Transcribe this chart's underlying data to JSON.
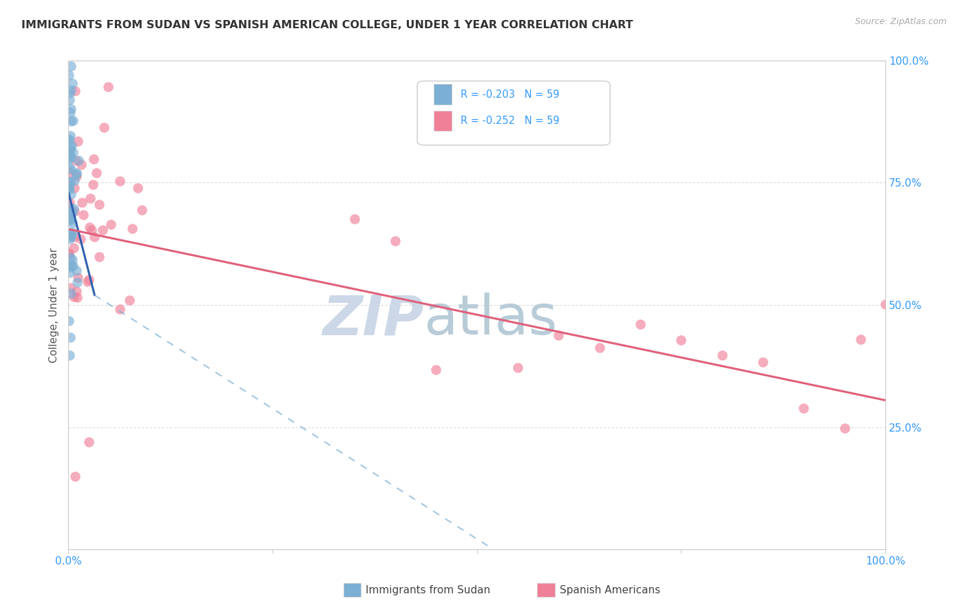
{
  "title": "IMMIGRANTS FROM SUDAN VS SPANISH AMERICAN COLLEGE, UNDER 1 YEAR CORRELATION CHART",
  "source": "Source: ZipAtlas.com",
  "ylabel": "College, Under 1 year",
  "sudan_color": "#7bafd4",
  "spanish_color": "#f08098",
  "sudan_line_color": "#3060b0",
  "spanish_line_color": "#e0607a",
  "background_color": "#ffffff",
  "grid_color": "#dddddd",
  "watermark_zip_color": "#ccd8e8",
  "watermark_atlas_color": "#b8ccd8",
  "sudan_R": -0.203,
  "spanish_R": -0.252,
  "N": 59,
  "legend_r1": "R = -0.203   N = 59",
  "legend_r2": "R = -0.252   N = 59",
  "bottom_label1": "Immigrants from Sudan",
  "bottom_label2": "Spanish Americans"
}
